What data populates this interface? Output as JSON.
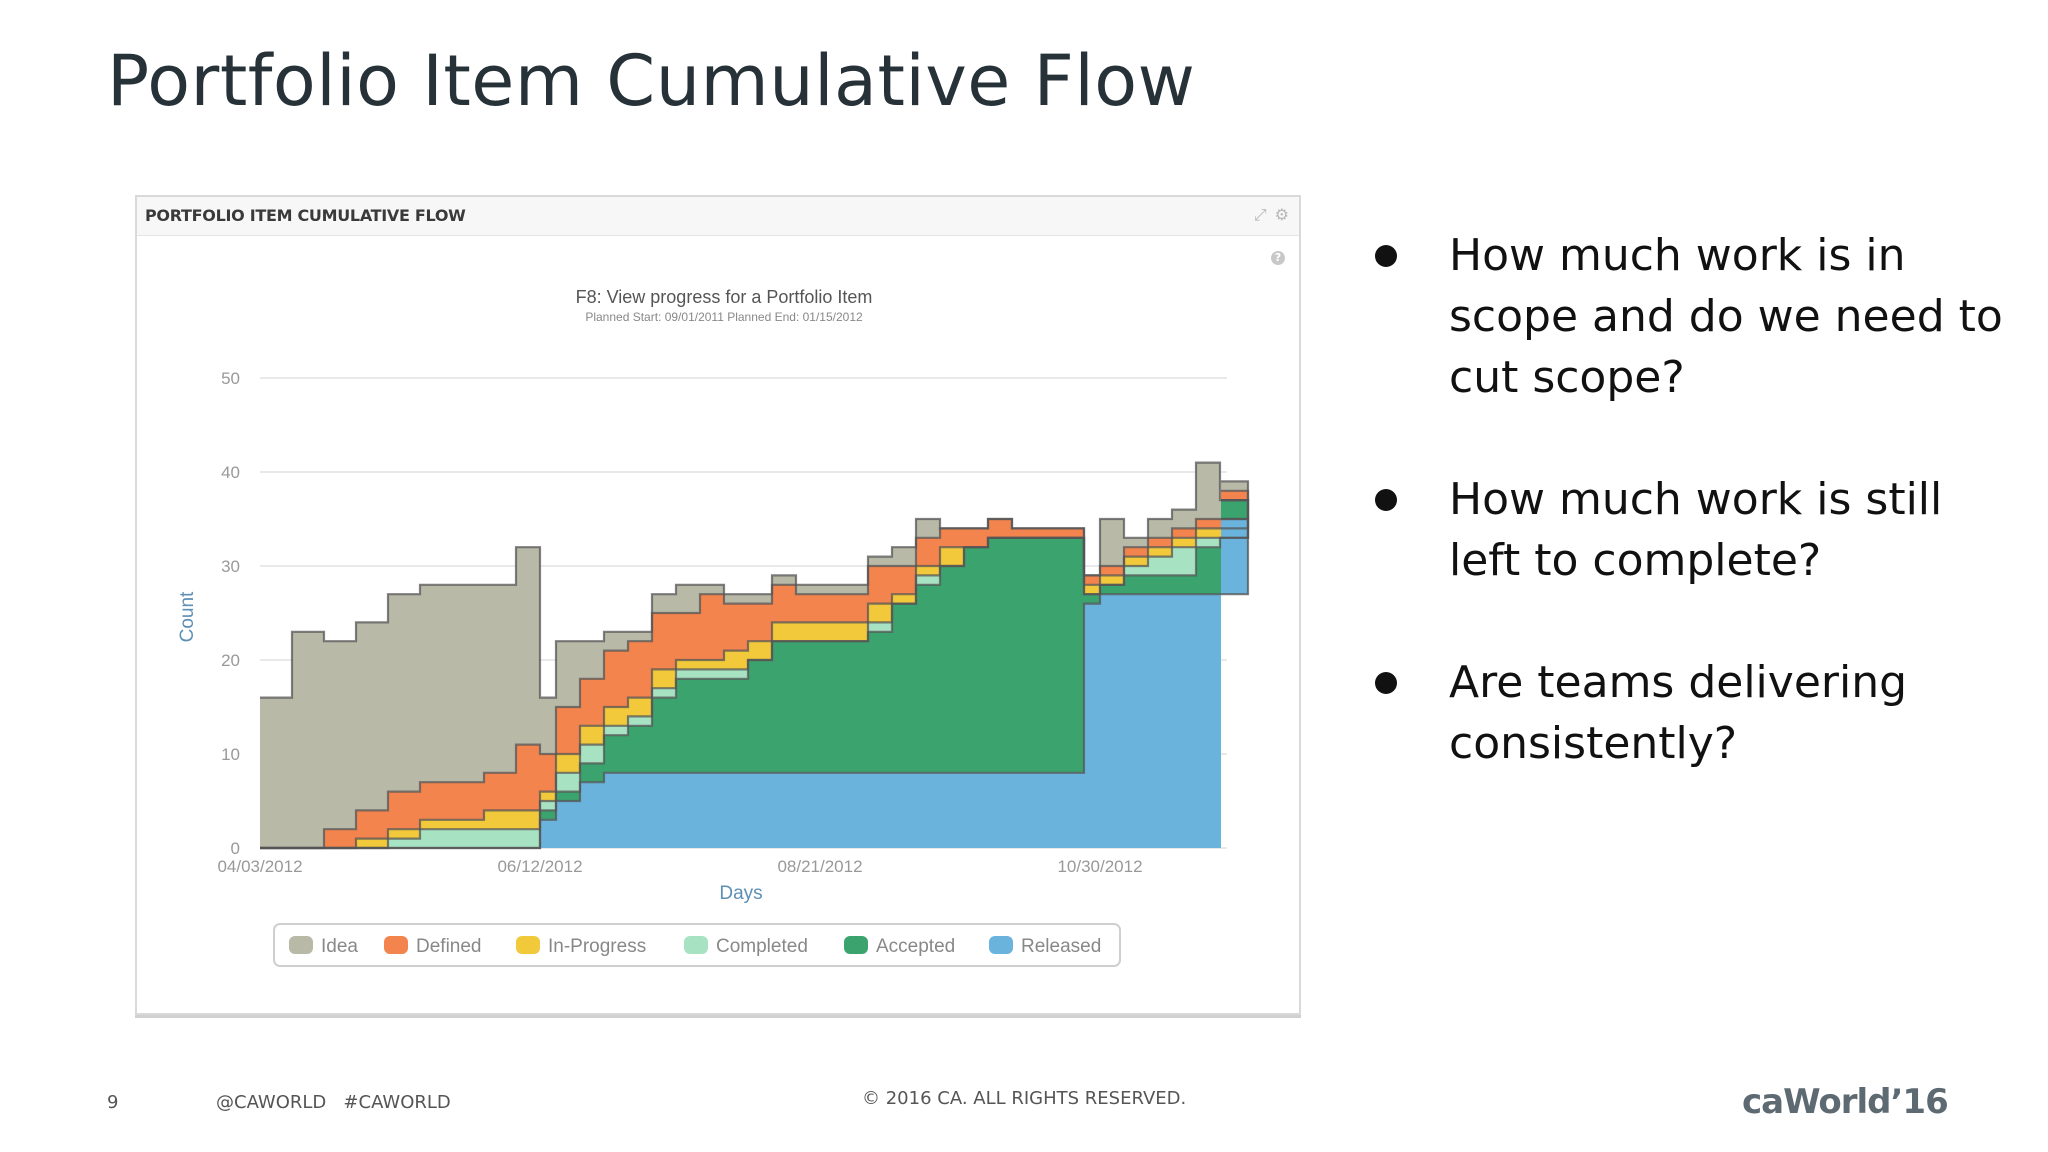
{
  "slide": {
    "title": "Portfolio Item Cumulative Flow",
    "bullets": [
      "How much work is in scope and do we need to cut scope?",
      "How much work is still left to complete?",
      "Are teams delivering consistently?"
    ],
    "footer": {
      "page_number": "9",
      "social": "@CAWORLD   #CAWORLD",
      "copyright": "© 2016 CA. ALL RIGHTS RESERVED.",
      "logo": "caWorld’16"
    }
  },
  "panel": {
    "title": "PORTFOLIO ITEM CUMULATIVE FLOW",
    "icons": [
      "expand-icon",
      "gear-icon",
      "help-icon"
    ]
  },
  "chart_data": {
    "type": "area",
    "stacked": true,
    "title": "F8: View progress for a Portfolio Item",
    "subtitle": "Planned Start: 09/01/2011     Planned End: 01/15/2012",
    "xlabel": "Days",
    "ylabel": "Count",
    "ylim": [
      0,
      50
    ],
    "yticks": [
      0,
      10,
      20,
      30,
      40,
      50
    ],
    "x_tick_labels": [
      "04/03/2012",
      "06/12/2012",
      "08/21/2012",
      "10/30/2012"
    ],
    "x_ticks": [
      "2012-04-03",
      "2012-06-12",
      "2012-08-21",
      "2012-10-30"
    ],
    "x": [
      "2012-04-03",
      "2012-04-11",
      "2012-04-19",
      "2012-04-27",
      "2012-05-05",
      "2012-05-13",
      "2012-05-21",
      "2012-05-29",
      "2012-06-06",
      "2012-06-12",
      "2012-06-16",
      "2012-06-22",
      "2012-06-28",
      "2012-07-04",
      "2012-07-10",
      "2012-07-16",
      "2012-07-22",
      "2012-07-28",
      "2012-08-03",
      "2012-08-09",
      "2012-08-15",
      "2012-08-21",
      "2012-08-27",
      "2012-09-02",
      "2012-09-08",
      "2012-09-14",
      "2012-09-20",
      "2012-09-26",
      "2012-10-02",
      "2012-10-08",
      "2012-10-14",
      "2012-10-20",
      "2012-10-26",
      "2012-10-30",
      "2012-11-05",
      "2012-11-11",
      "2012-11-17",
      "2012-11-23",
      "2012-11-29",
      "2012-12-06"
    ],
    "series": [
      {
        "name": "Released",
        "color": "#69b3dc",
        "values": [
          0,
          0,
          0,
          0,
          0,
          0,
          0,
          0,
          0,
          3,
          5,
          7,
          8,
          8,
          8,
          8,
          8,
          8,
          8,
          8,
          8,
          8,
          8,
          8,
          8,
          8,
          8,
          8,
          8,
          8,
          8,
          8,
          26,
          27,
          27,
          27,
          27,
          27,
          27,
          35
        ]
      },
      {
        "name": "Accepted",
        "color": "#3aa36e",
        "values": [
          0,
          0,
          0,
          0,
          0,
          0,
          0,
          0,
          0,
          1,
          1,
          2,
          4,
          5,
          8,
          10,
          10,
          10,
          12,
          14,
          14,
          14,
          14,
          15,
          18,
          20,
          22,
          24,
          25,
          25,
          25,
          25,
          1,
          1,
          2,
          2,
          2,
          5,
          6,
          2
        ]
      },
      {
        "name": "Completed",
        "color": "#a7e3c2",
        "values": [
          0,
          0,
          0,
          0,
          1,
          2,
          2,
          2,
          2,
          1,
          2,
          2,
          1,
          1,
          1,
          1,
          1,
          1,
          0,
          0,
          0,
          0,
          0,
          1,
          0,
          1,
          0,
          0,
          0,
          0,
          0,
          0,
          0,
          0,
          1,
          2,
          3,
          1,
          0,
          0
        ]
      },
      {
        "name": "In-Progress",
        "color": "#f1c93b",
        "values": [
          0,
          0,
          0,
          1,
          1,
          1,
          1,
          2,
          2,
          1,
          2,
          2,
          2,
          2,
          2,
          1,
          1,
          2,
          2,
          2,
          2,
          2,
          2,
          2,
          1,
          1,
          2,
          0,
          0,
          0,
          0,
          0,
          1,
          1,
          1,
          1,
          1,
          1,
          1,
          0
        ]
      },
      {
        "name": "Defined",
        "color": "#f4844d",
        "values": [
          0,
          0,
          2,
          3,
          4,
          4,
          4,
          4,
          7,
          4,
          5,
          5,
          6,
          6,
          6,
          5,
          7,
          5,
          4,
          4,
          3,
          3,
          3,
          4,
          3,
          3,
          2,
          2,
          2,
          1,
          1,
          1,
          1,
          1,
          1,
          1,
          1,
          1,
          1,
          1
        ]
      },
      {
        "name": "Idea",
        "color": "#b9b9a8",
        "values": [
          16,
          23,
          20,
          20,
          21,
          21,
          21,
          20,
          21,
          6,
          7,
          4,
          2,
          1,
          2,
          3,
          1,
          1,
          1,
          1,
          1,
          1,
          1,
          1,
          2,
          2,
          0,
          0,
          0,
          0,
          0,
          0,
          0,
          5,
          1,
          2,
          2,
          6,
          2,
          1
        ]
      }
    ],
    "legend": [
      "Idea",
      "Defined",
      "In-Progress",
      "Completed",
      "Accepted",
      "Released"
    ],
    "legend_position": "bottom",
    "grid": true
  }
}
